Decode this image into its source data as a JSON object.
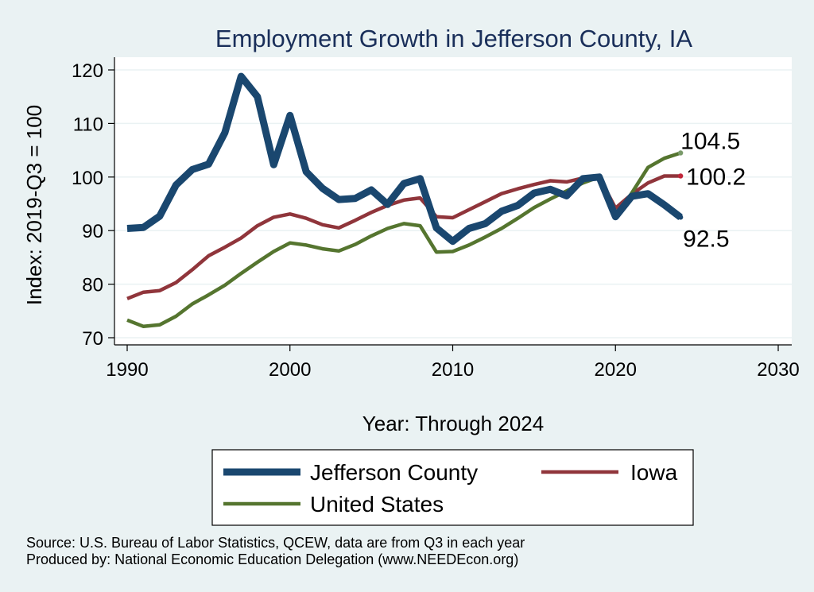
{
  "chart_data": {
    "type": "line",
    "title": "Employment Growth in Jefferson County, IA",
    "xlabel": "Year: Through 2024",
    "ylabel": "Index: 2019-Q3 = 100",
    "xlim": [
      1990,
      2030
    ],
    "ylim": [
      67,
      122
    ],
    "xticks": [
      1990,
      2000,
      2010,
      2020,
      2030
    ],
    "yticks": [
      70,
      80,
      90,
      100,
      110,
      120
    ],
    "grid": true,
    "x": [
      1990,
      1991,
      1992,
      1993,
      1994,
      1995,
      1996,
      1997,
      1998,
      1999,
      2000,
      2001,
      2002,
      2003,
      2004,
      2005,
      2006,
      2007,
      2008,
      2009,
      2010,
      2011,
      2012,
      2013,
      2014,
      2015,
      2016,
      2017,
      2018,
      2019,
      2020,
      2021,
      2022,
      2023,
      2024
    ],
    "series": [
      {
        "name": "Jefferson  County",
        "color": "#1a476f",
        "values": [
          90.4,
          90.6,
          92.7,
          98.5,
          101.4,
          102.4,
          108.3,
          118.8,
          115.0,
          102.3,
          111.5,
          101.0,
          97.9,
          95.8,
          96.0,
          97.6,
          94.9,
          98.8,
          99.7,
          90.5,
          88.0,
          90.4,
          91.3,
          93.6,
          94.7,
          97.0,
          97.7,
          96.5,
          99.7,
          100.0,
          92.6,
          96.4,
          96.9,
          94.8,
          92.5
        ]
      },
      {
        "name": "Iowa",
        "color": "#90353b",
        "values": [
          77.3,
          78.5,
          78.8,
          80.3,
          82.7,
          85.3,
          86.9,
          88.6,
          90.9,
          92.5,
          93.1,
          92.3,
          91.1,
          90.5,
          91.9,
          93.4,
          94.7,
          95.7,
          96.1,
          92.6,
          92.4,
          93.9,
          95.4,
          96.9,
          97.8,
          98.6,
          99.3,
          99.1,
          99.8,
          100.0,
          94.2,
          96.8,
          98.9,
          100.2,
          100.2
        ]
      },
      {
        "name": "United States",
        "color": "#55752f",
        "values": [
          73.3,
          72.1,
          72.4,
          74.0,
          76.3,
          78.0,
          79.8,
          82.0,
          84.1,
          86.1,
          87.7,
          87.3,
          86.6,
          86.2,
          87.4,
          89.0,
          90.4,
          91.3,
          90.9,
          86.0,
          86.1,
          87.3,
          88.8,
          90.4,
          92.3,
          94.3,
          95.9,
          97.4,
          98.9,
          100.0,
          92.7,
          97.0,
          101.8,
          103.5,
          104.5
        ]
      }
    ],
    "end_labels": [
      "104.5",
      "100.2",
      "92.5"
    ],
    "legend": {
      "placement": "bottom",
      "items": [
        "Jefferson  County",
        "Iowa",
        "United States"
      ]
    },
    "notes": [
      "Source: U.S. Bureau of Labor Statistics, QCEW, data are from Q3 in each year",
      "Produced by: National Economic Education Delegation (www.NEEDEcon.org)"
    ]
  }
}
